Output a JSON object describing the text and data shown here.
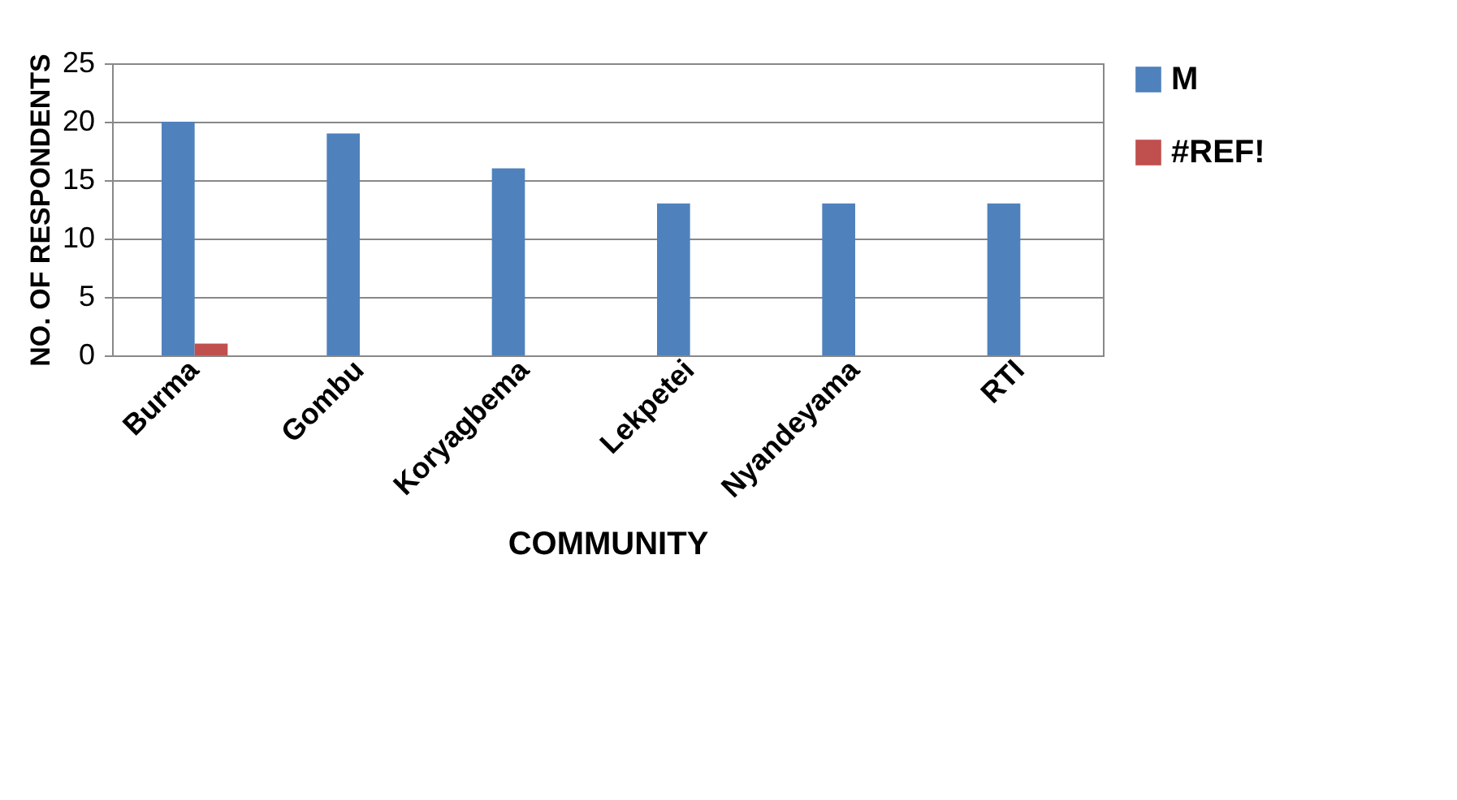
{
  "chart_data": {
    "type": "bar",
    "xlabel": "COMMUNITY",
    "ylabel": "NO. OF RESPONDENTS",
    "categories": [
      "Burma",
      "Gombu",
      "Koryagbema",
      "Lekpetei",
      "Nyandeyama",
      "RTI"
    ],
    "series": [
      {
        "name": "M",
        "color": "#4f81bd",
        "values": [
          20,
          19,
          16,
          13,
          13,
          13
        ]
      },
      {
        "name": "#REF!",
        "color": "#c0504d",
        "values": [
          1,
          0,
          0,
          0,
          0,
          0
        ]
      }
    ],
    "ylim": [
      0,
      25
    ],
    "yticks": [
      0,
      5,
      10,
      15,
      20,
      25
    ],
    "grid": "y",
    "legend": "right"
  }
}
